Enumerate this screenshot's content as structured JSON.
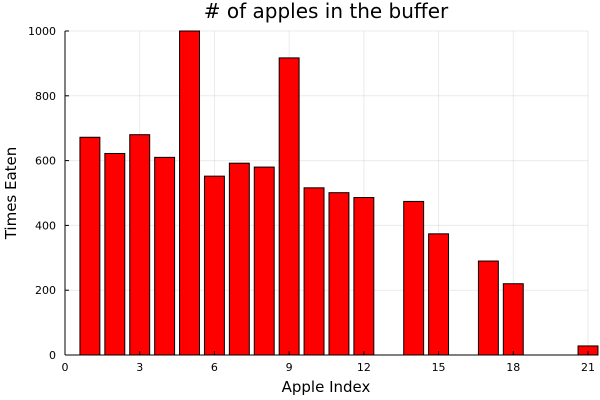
{
  "chart_data": {
    "type": "bar",
    "title": "# of apples in the buffer",
    "xlabel": "Apple Index",
    "ylabel": "Times Eaten",
    "xlim": [
      0,
      21
    ],
    "ylim": [
      0,
      1000
    ],
    "x_ticks": [
      0,
      3,
      6,
      9,
      12,
      15,
      18,
      21
    ],
    "y_ticks": [
      0,
      200,
      400,
      600,
      800,
      1000
    ],
    "grid": true,
    "legend": "none",
    "bar_color": "#ff0000",
    "x": [
      1,
      2,
      3,
      4,
      5,
      6,
      7,
      8,
      9,
      10,
      11,
      12,
      13,
      14,
      15,
      16,
      17,
      18,
      19,
      20,
      21
    ],
    "values": [
      672,
      622,
      680,
      610,
      1000,
      552,
      592,
      580,
      917,
      516,
      501,
      486,
      0,
      474,
      374,
      0,
      290,
      220,
      0,
      0,
      28
    ]
  }
}
